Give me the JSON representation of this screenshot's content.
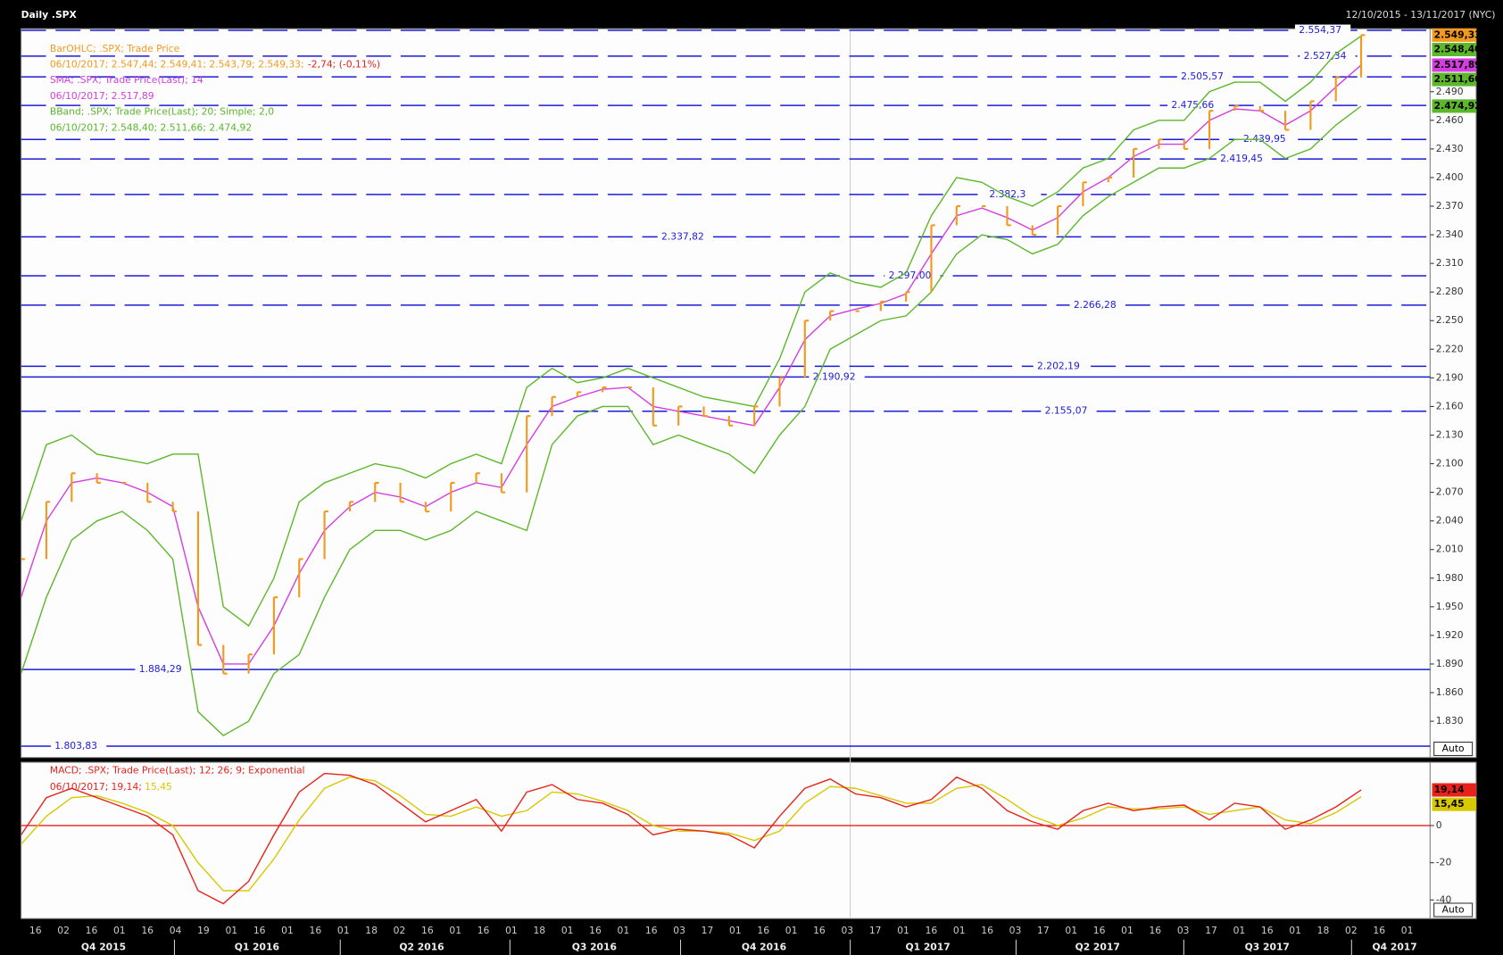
{
  "header": {
    "title": "Daily .SPX",
    "range": "12/10/2015 - 13/11/2017 (NYC)"
  },
  "time_axis": {
    "days": [
      "16",
      "02",
      "16",
      "01",
      "16",
      "04",
      "19",
      "01",
      "16",
      "01",
      "16",
      "01",
      "18",
      "02",
      "16",
      "01",
      "16",
      "01",
      "18",
      "01",
      "16",
      "01",
      "16",
      "03",
      "17",
      "01",
      "16",
      "01",
      "16",
      "03",
      "17",
      "01",
      "16",
      "01",
      "16",
      "03",
      "17",
      "01",
      "16",
      "01",
      "16",
      "03",
      "17",
      "01",
      "16",
      "01",
      "18",
      "02",
      "16",
      "01"
    ],
    "quarters": [
      "Q4 2015",
      "Q1 2016",
      "Q2 2016",
      "Q3 2016",
      "Q4 2016",
      "Q1 2017",
      "Q2 2017",
      "Q3 2017",
      "Q4 2017"
    ]
  },
  "chart_data": [
    {
      "type": "ohlc",
      "ylim": [
        1792,
        2556
      ],
      "yticks": [
        {
          "value": 2490,
          "label": "2.490"
        },
        {
          "value": 2460,
          "label": "2.460"
        },
        {
          "value": 2430,
          "label": "2.430"
        },
        {
          "value": 2400,
          "label": "2.400"
        },
        {
          "value": 2370,
          "label": "2.370"
        },
        {
          "value": 2340,
          "label": "2.340"
        },
        {
          "value": 2310,
          "label": "2.310"
        },
        {
          "value": 2280,
          "label": "2.280"
        },
        {
          "value": 2250,
          "label": "2.250"
        },
        {
          "value": 2220,
          "label": "2.220"
        },
        {
          "value": 2190,
          "label": "2.190"
        },
        {
          "value": 2160,
          "label": "2.160"
        },
        {
          "value": 2130,
          "label": "2.130"
        },
        {
          "value": 2100,
          "label": "2.100"
        },
        {
          "value": 2070,
          "label": "2.070"
        },
        {
          "value": 2040,
          "label": "2.040"
        },
        {
          "value": 2010,
          "label": "2.010"
        },
        {
          "value": 1980,
          "label": "1.980"
        },
        {
          "value": 1950,
          "label": "1.950"
        },
        {
          "value": 1920,
          "label": "1.920"
        },
        {
          "value": 1890,
          "label": "1.890"
        },
        {
          "value": 1860,
          "label": "1.860"
        },
        {
          "value": 1830,
          "label": "1.830"
        }
      ],
      "scale_mode": "Auto",
      "series": [
        {
          "name": "BarOHLC; .SPX; Trade Price",
          "info": "06/10/2017; 2.547,44; 2.549,41; 2.543,79; 2.549,33;",
          "change": "-2,74; (-0,11%)",
          "color": "#f39a1e",
          "values": [
            2000,
            2060,
            2090,
            2080,
            2080,
            2060,
            2050,
            1910,
            1880,
            1900,
            1960,
            2000,
            2050,
            2060,
            2080,
            2060,
            2050,
            2080,
            2090,
            2070,
            2150,
            2170,
            2175,
            2180,
            2180,
            2140,
            2160,
            2150,
            2140,
            2160,
            2190,
            2250,
            2260,
            2260,
            2270,
            2280,
            2350,
            2370,
            2370,
            2350,
            2340,
            2370,
            2395,
            2400,
            2430,
            2440,
            2430,
            2470,
            2475,
            2470,
            2450,
            2480,
            2505,
            2549.33
          ]
        },
        {
          "name": "SMA; .SPX; Trade Price(Last); 14",
          "info": "06/10/2017; 2.517,89",
          "color": "#d43ee0",
          "values": [
            1960,
            2040,
            2080,
            2085,
            2080,
            2070,
            2055,
            1950,
            1890,
            1890,
            1930,
            1985,
            2030,
            2055,
            2070,
            2065,
            2055,
            2070,
            2080,
            2075,
            2120,
            2160,
            2170,
            2178,
            2180,
            2160,
            2155,
            2150,
            2145,
            2140,
            2180,
            2230,
            2255,
            2262,
            2268,
            2278,
            2320,
            2360,
            2368,
            2358,
            2345,
            2358,
            2385,
            2400,
            2422,
            2435,
            2435,
            2460,
            2472,
            2470,
            2455,
            2470,
            2495,
            2517.89
          ]
        },
        {
          "name": "BBand; .SPX; Trade Price(Last); 20; Simple; 2,0",
          "info": "06/10/2017; 2.548,40; 2.511,66; 2.474,92",
          "color": "#5cb82a",
          "upper": [
            2040,
            2120,
            2130,
            2110,
            2105,
            2100,
            2110,
            2110,
            1950,
            1930,
            1980,
            2060,
            2080,
            2090,
            2100,
            2095,
            2085,
            2100,
            2110,
            2100,
            2180,
            2200,
            2185,
            2190,
            2200,
            2190,
            2180,
            2170,
            2165,
            2160,
            2210,
            2280,
            2300,
            2290,
            2285,
            2300,
            2360,
            2400,
            2395,
            2380,
            2370,
            2385,
            2410,
            2420,
            2450,
            2460,
            2460,
            2490,
            2500,
            2500,
            2480,
            2500,
            2530,
            2548.4
          ],
          "lower": [
            1880,
            1960,
            2020,
            2040,
            2050,
            2030,
            2000,
            1840,
            1815,
            1830,
            1880,
            1900,
            1960,
            2010,
            2030,
            2030,
            2020,
            2030,
            2050,
            2040,
            2030,
            2120,
            2150,
            2160,
            2160,
            2120,
            2130,
            2120,
            2110,
            2090,
            2130,
            2160,
            2220,
            2235,
            2250,
            2255,
            2280,
            2320,
            2340,
            2335,
            2320,
            2330,
            2360,
            2380,
            2395,
            2410,
            2410,
            2420,
            2440,
            2440,
            2420,
            2430,
            2455,
            2474.92
          ]
        }
      ],
      "levels": [
        {
          "value": 2554.37,
          "label": "2.554,37",
          "style": "dashed"
        },
        {
          "value": 2527.34,
          "label": "2.527,34",
          "style": "dashed"
        },
        {
          "value": 2505.57,
          "label": "2.505,57",
          "style": "dashed"
        },
        {
          "value": 2475.66,
          "label": "2.475,66",
          "style": "dashed"
        },
        {
          "value": 2439.95,
          "label": "2.439,95",
          "style": "dashed"
        },
        {
          "value": 2419.45,
          "label": "2.419,45",
          "style": "dashed"
        },
        {
          "value": 2382.3,
          "label": "2.382,3",
          "style": "dashed"
        },
        {
          "value": 2337.82,
          "label": "2.337,82",
          "style": "dashed"
        },
        {
          "value": 2297.0,
          "label": "2.297,00",
          "style": "dashed"
        },
        {
          "value": 2266.28,
          "label": "2.266,28",
          "style": "dashed"
        },
        {
          "value": 2202.19,
          "label": "2.202,19",
          "style": "dashed"
        },
        {
          "value": 2190.92,
          "label": "2.190,92",
          "style": "solid"
        },
        {
          "value": 2155.07,
          "label": "2.155,07",
          "style": "dashed"
        },
        {
          "value": 1884.29,
          "label": "1.884,29",
          "style": "solid"
        },
        {
          "value": 1803.83,
          "label": "1.803,83",
          "style": "solid"
        }
      ],
      "level_color": "#1c1cd6",
      "badges": [
        {
          "value": 2549.33,
          "label": "2.549,33",
          "color": "#f39a1e"
        },
        {
          "value": 2548.4,
          "label": "2.548,40",
          "color": "#5cb82a"
        },
        {
          "value": 2517.89,
          "label": "2.517,89",
          "color": "#d43ee0"
        },
        {
          "value": 2511.66,
          "label": "2.511,66",
          "color": "#5cb82a"
        },
        {
          "value": 2474.92,
          "label": "2.474,92",
          "color": "#5cb82a"
        }
      ]
    },
    {
      "type": "line",
      "ylim": [
        -50,
        34
      ],
      "yticks": [
        0,
        -20,
        -40
      ],
      "scale_mode": "Auto",
      "title": "MACD; .SPX; Trade Price(Last); 12; 26; 9; Exponential",
      "info_date": "06/10/2017;",
      "zero_color": "#e8221a",
      "series": [
        {
          "label": "19,14;",
          "color": "#e8221a",
          "values": [
            -5,
            15,
            20,
            15,
            10,
            5,
            -5,
            -35,
            -42,
            -30,
            -5,
            18,
            28,
            27,
            22,
            12,
            2,
            8,
            14,
            -3,
            18,
            22,
            14,
            12,
            6,
            -5,
            -2,
            -3,
            -5,
            -12,
            5,
            20,
            25,
            17,
            15,
            10,
            14,
            26,
            20,
            8,
            2,
            -2,
            8,
            12,
            8,
            10,
            11,
            3,
            12,
            10,
            -2,
            3,
            10,
            19.14
          ]
        },
        {
          "label": "15,45",
          "color": "#d8c800",
          "values": [
            -10,
            5,
            15,
            16,
            12,
            7,
            0,
            -20,
            -35,
            -35,
            -18,
            3,
            20,
            26,
            24,
            16,
            6,
            5,
            10,
            5,
            8,
            18,
            17,
            13,
            8,
            0,
            -3,
            -3,
            -4,
            -8,
            -3,
            12,
            21,
            20,
            16,
            12,
            12,
            20,
            22,
            14,
            5,
            0,
            4,
            10,
            9,
            9,
            10,
            6,
            8,
            10,
            3,
            1,
            7,
            15.45
          ]
        }
      ],
      "badges": [
        {
          "value": 19.14,
          "label": "19,14",
          "color": "#e8221a"
        },
        {
          "value": 15.45,
          "label": "15,45",
          "color": "#d8c800"
        }
      ]
    }
  ]
}
